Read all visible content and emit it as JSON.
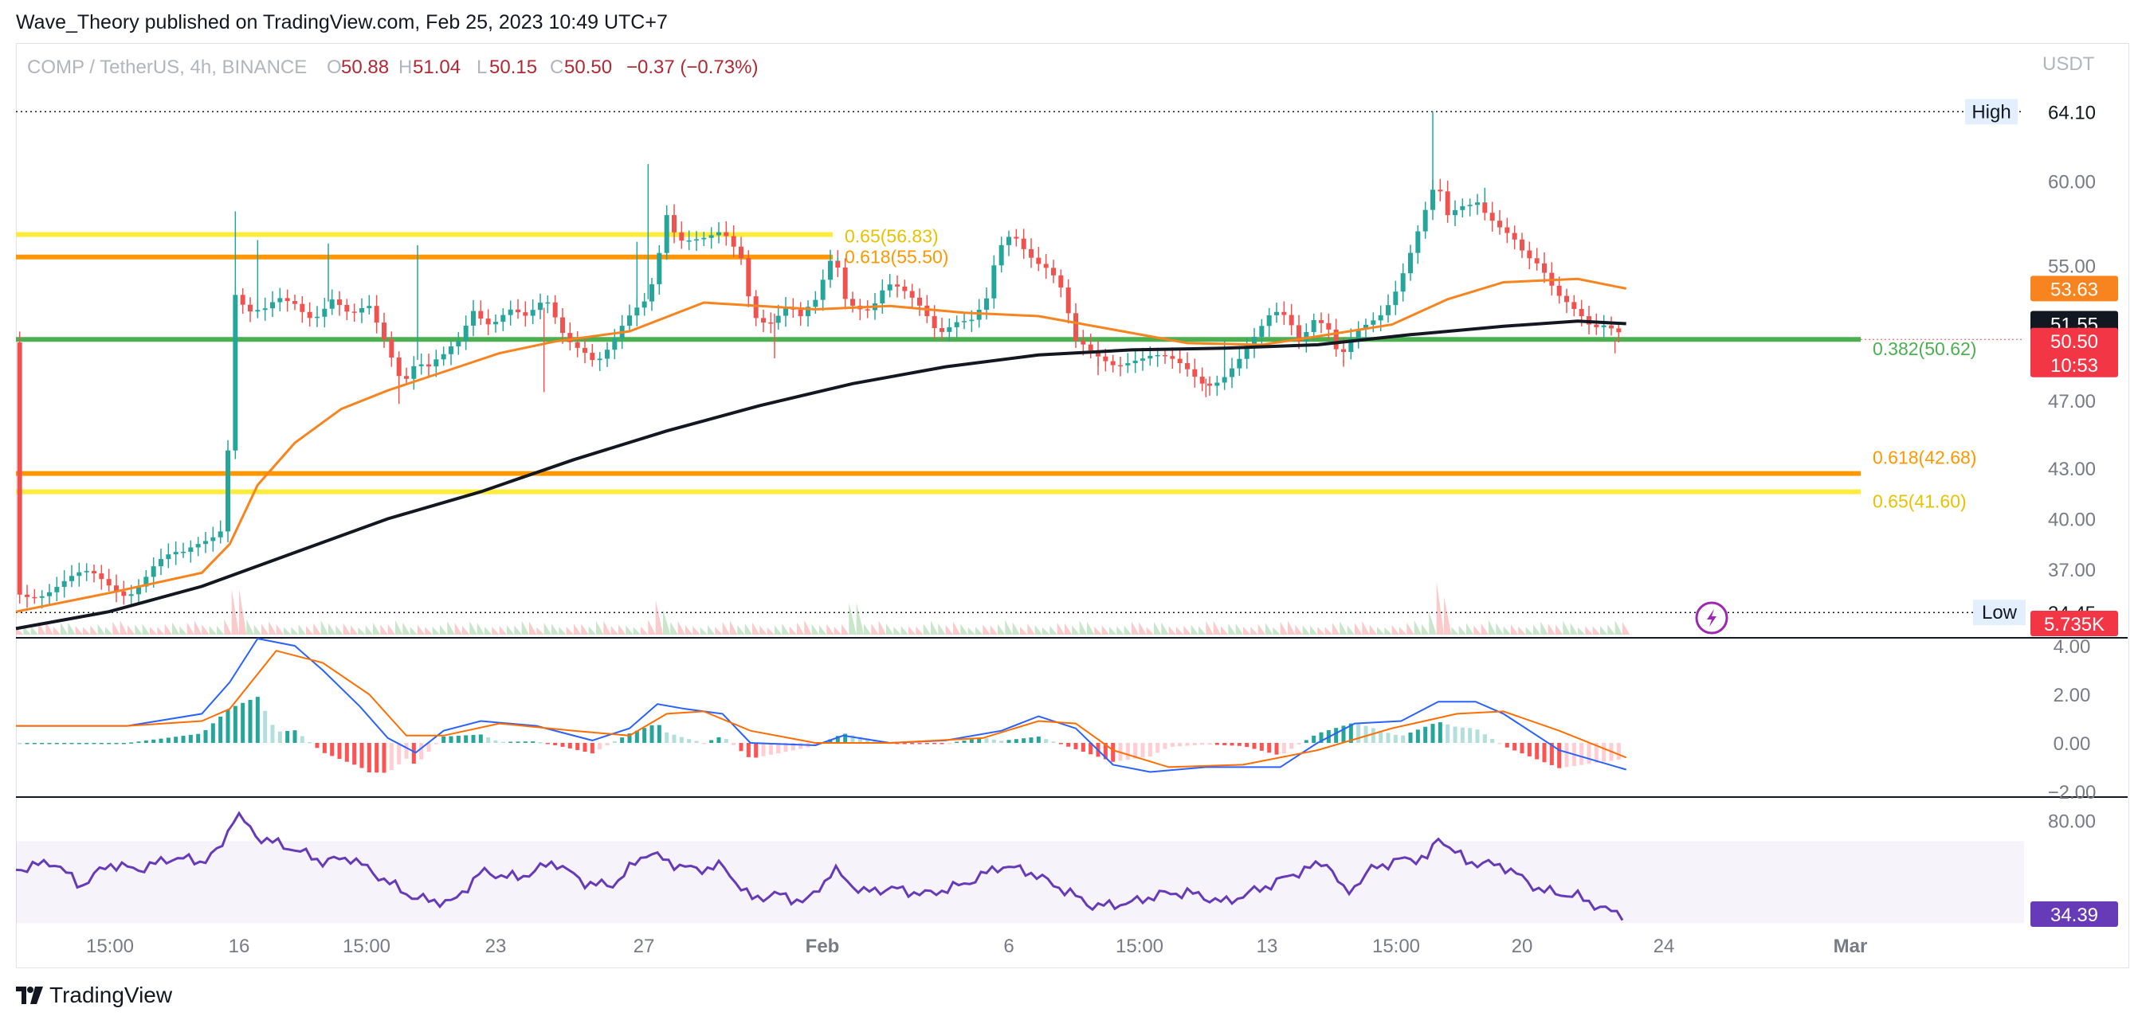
{
  "header": {
    "published": "Wave_Theory published on TradingView.com, Feb 25, 2023 10:49 UTC+7"
  },
  "symbol_bar": {
    "symbol": "COMP / TetherUS, 4h, BINANCE",
    "o_label": "O",
    "o": "50.88",
    "h_label": "H",
    "h": "51.04",
    "l_label": "L",
    "l": "50.15",
    "c_label": "C",
    "c": "50.50",
    "change": "−0.37 (−0.73%)"
  },
  "currency": "USDT",
  "brand": "TradingView",
  "colors": {
    "up": "#26a69a",
    "down": "#ef5350",
    "ema50": "#f7841e",
    "ema200": "#131722",
    "fib_yellow": "#ffeb3b",
    "fib_orange": "#ff9800",
    "fib_green": "#4caf50",
    "macd": "#2962ff",
    "signal": "#ff6d00",
    "rsi": "#673ab7"
  },
  "chart_data": [
    {
      "type": "candlestick",
      "pane": "price",
      "ylim": [
        33,
        66
      ],
      "y_ticks": [
        "60.00",
        "55.00",
        "47.00",
        "43.00",
        "40.00",
        "37.00"
      ],
      "x_ticks": [
        "15:00",
        "16",
        "15:00",
        "23",
        "27",
        "Feb",
        "6",
        "15:00",
        "13",
        "15:00",
        "20",
        "24",
        "Mar"
      ],
      "high": {
        "label": "High",
        "value": "64.10"
      },
      "low": {
        "label": "Low",
        "value": "34.45"
      },
      "price_badges": {
        "ema50": "53.63",
        "ema200": "51.55",
        "last": "50.50",
        "countdown": "10:53"
      },
      "fib_levels": [
        {
          "label": "0.65(56.83)",
          "value": 56.83,
          "color": "#ffeb3b"
        },
        {
          "label": "0.618(55.50)",
          "value": 55.5,
          "color": "#ff9800"
        },
        {
          "label": "0.382(50.62)",
          "value": 50.62,
          "color": "#4caf50"
        },
        {
          "label": "0.618(42.68)",
          "value": 42.68,
          "color": "#ff9800"
        },
        {
          "label": "0.65(41.60)",
          "value": 41.6,
          "color": "#ffeb3b"
        }
      ],
      "close_path": [
        [
          0,
          35.6
        ],
        [
          20,
          36.1
        ],
        [
          40,
          36.4
        ],
        [
          60,
          35.9
        ],
        [
          75,
          37.2
        ],
        [
          90,
          37.6
        ],
        [
          100,
          38.8
        ],
        [
          110,
          39.8
        ],
        [
          114,
          44.5
        ],
        [
          118,
          53.5
        ],
        [
          125,
          52.0
        ],
        [
          133,
          51.8
        ],
        [
          142,
          52.8
        ],
        [
          150,
          53.0
        ],
        [
          160,
          52.3
        ],
        [
          170,
          53.0
        ],
        [
          180,
          51.5
        ],
        [
          190,
          52.3
        ],
        [
          200,
          50.5
        ],
        [
          208,
          48.5
        ],
        [
          215,
          49.5
        ],
        [
          222,
          48.8
        ],
        [
          230,
          49.2
        ],
        [
          238,
          50.2
        ],
        [
          246,
          52.5
        ],
        [
          255,
          52.0
        ],
        [
          265,
          52.6
        ],
        [
          275,
          51.5
        ],
        [
          285,
          52.6
        ],
        [
          295,
          51.0
        ],
        [
          305,
          50.5
        ],
        [
          312,
          49.5
        ],
        [
          320,
          50.0
        ],
        [
          330,
          51.5
        ],
        [
          340,
          53.0
        ],
        [
          345,
          55.5
        ],
        [
          350,
          58.5
        ],
        [
          356,
          57.0
        ],
        [
          365,
          56.5
        ],
        [
          372,
          56.2
        ],
        [
          380,
          56.5
        ],
        [
          390,
          55.5
        ],
        [
          396,
          52.5
        ],
        [
          405,
          52.0
        ],
        [
          415,
          52.5
        ],
        [
          422,
          51.5
        ],
        [
          430,
          52.5
        ],
        [
          440,
          56.0
        ],
        [
          446,
          53.5
        ],
        [
          452,
          53.0
        ],
        [
          460,
          52.5
        ],
        [
          468,
          53.5
        ],
        [
          478,
          53.0
        ],
        [
          488,
          52.5
        ],
        [
          496,
          51.5
        ],
        [
          505,
          52.0
        ],
        [
          515,
          51.5
        ],
        [
          522,
          52.5
        ],
        [
          528,
          55.5
        ],
        [
          536,
          57.0
        ],
        [
          546,
          56.0
        ],
        [
          556,
          55.0
        ],
        [
          562,
          53.5
        ],
        [
          570,
          50.0
        ],
        [
          580,
          49.5
        ],
        [
          590,
          49.5
        ],
        [
          600,
          49.8
        ],
        [
          610,
          49.5
        ],
        [
          620,
          49.0
        ],
        [
          630,
          48.7
        ],
        [
          640,
          48.3
        ],
        [
          650,
          48.8
        ],
        [
          660,
          49.5
        ],
        [
          668,
          50.5
        ],
        [
          676,
          52.0
        ],
        [
          684,
          52.2
        ],
        [
          690,
          51.0
        ],
        [
          698,
          52.2
        ],
        [
          705,
          51.5
        ],
        [
          712,
          49.0
        ],
        [
          720,
          50.5
        ],
        [
          728,
          51.5
        ],
        [
          735,
          52.5
        ],
        [
          742,
          54.0
        ],
        [
          748,
          55.5
        ],
        [
          756,
          57.5
        ],
        [
          764,
          59.5
        ],
        [
          770,
          57.5
        ],
        [
          778,
          58.5
        ],
        [
          786,
          59.2
        ],
        [
          795,
          58.0
        ],
        [
          805,
          56.5
        ],
        [
          812,
          55.0
        ],
        [
          820,
          54.5
        ],
        [
          828,
          53.5
        ],
        [
          836,
          53.2
        ],
        [
          842,
          52.5
        ],
        [
          848,
          51.5
        ],
        [
          855,
          51.2
        ],
        [
          860,
          50.6
        ],
        [
          866,
          50.3
        ]
      ],
      "ema50_path": [
        [
          0,
          34.5
        ],
        [
          50,
          35.6
        ],
        [
          100,
          36.8
        ],
        [
          115,
          38.5
        ],
        [
          130,
          42.0
        ],
        [
          150,
          44.5
        ],
        [
          175,
          46.5
        ],
        [
          200,
          47.6
        ],
        [
          230,
          48.7
        ],
        [
          260,
          49.8
        ],
        [
          290,
          50.5
        ],
        [
          330,
          51.1
        ],
        [
          370,
          52.8
        ],
        [
          400,
          52.6
        ],
        [
          430,
          52.4
        ],
        [
          470,
          52.6
        ],
        [
          510,
          52.2
        ],
        [
          550,
          52.0
        ],
        [
          590,
          51.2
        ],
        [
          630,
          50.4
        ],
        [
          670,
          50.3
        ],
        [
          700,
          50.8
        ],
        [
          740,
          51.5
        ],
        [
          770,
          53.0
        ],
        [
          800,
          54.0
        ],
        [
          840,
          54.2
        ],
        [
          866,
          53.63
        ]
      ],
      "ema200_path": [
        [
          0,
          33.5
        ],
        [
          50,
          34.5
        ],
        [
          100,
          36.0
        ],
        [
          150,
          38.0
        ],
        [
          200,
          40.0
        ],
        [
          250,
          41.6
        ],
        [
          300,
          43.5
        ],
        [
          350,
          45.2
        ],
        [
          400,
          46.7
        ],
        [
          450,
          48.0
        ],
        [
          500,
          49.0
        ],
        [
          550,
          49.7
        ],
        [
          600,
          50.0
        ],
        [
          650,
          50.1
        ],
        [
          700,
          50.3
        ],
        [
          750,
          50.9
        ],
        [
          800,
          51.4
        ],
        [
          840,
          51.7
        ],
        [
          866,
          51.55
        ]
      ],
      "wick_highs": [
        [
          118,
          58.2
        ],
        [
          130,
          56.5
        ],
        [
          168,
          56.3
        ],
        [
          216,
          56.2
        ],
        [
          334,
          56.4
        ],
        [
          340,
          61.0
        ],
        [
          442,
          55.5
        ],
        [
          650,
          50.6
        ],
        [
          762,
          64.1
        ],
        [
          790,
          59.6
        ]
      ],
      "wick_lows": [
        [
          206,
          46.8
        ],
        [
          284,
          47.5
        ],
        [
          408,
          49.5
        ],
        [
          582,
          48.5
        ],
        [
          640,
          47.2
        ],
        [
          714,
          49.0
        ],
        [
          860,
          49.8
        ]
      ]
    },
    {
      "type": "area",
      "pane": "volume",
      "label": "5.735K",
      "spikes": [
        [
          118,
          1.0
        ],
        [
          345,
          0.65
        ],
        [
          450,
          0.7
        ],
        [
          765,
          1.0
        ]
      ]
    },
    {
      "type": "line",
      "pane": "macd",
      "ylim": [
        -2.2,
        4.2
      ],
      "y_ticks": [
        "4.00",
        "2.00",
        "0.00",
        "−2.00"
      ],
      "macd_path": [
        [
          0,
          0.7
        ],
        [
          60,
          0.7
        ],
        [
          100,
          1.2
        ],
        [
          115,
          2.5
        ],
        [
          130,
          4.3
        ],
        [
          150,
          4.0
        ],
        [
          165,
          3.0
        ],
        [
          185,
          1.5
        ],
        [
          200,
          0.2
        ],
        [
          215,
          -0.4
        ],
        [
          230,
          0.5
        ],
        [
          250,
          0.9
        ],
        [
          280,
          0.7
        ],
        [
          310,
          0.1
        ],
        [
          330,
          0.6
        ],
        [
          345,
          1.6
        ],
        [
          360,
          1.4
        ],
        [
          380,
          1.2
        ],
        [
          395,
          0.0
        ],
        [
          430,
          -0.1
        ],
        [
          445,
          0.3
        ],
        [
          470,
          0.0
        ],
        [
          500,
          0.1
        ],
        [
          530,
          0.5
        ],
        [
          550,
          1.1
        ],
        [
          570,
          0.6
        ],
        [
          590,
          -0.9
        ],
        [
          610,
          -1.2
        ],
        [
          640,
          -1.0
        ],
        [
          680,
          -1.0
        ],
        [
          700,
          0.0
        ],
        [
          720,
          0.8
        ],
        [
          745,
          0.9
        ],
        [
          765,
          1.7
        ],
        [
          785,
          1.7
        ],
        [
          800,
          1.2
        ],
        [
          830,
          -0.3
        ],
        [
          866,
          -1.1
        ]
      ],
      "signal_path": [
        [
          0,
          0.7
        ],
        [
          60,
          0.7
        ],
        [
          100,
          0.9
        ],
        [
          115,
          1.4
        ],
        [
          140,
          3.8
        ],
        [
          165,
          3.3
        ],
        [
          190,
          2.0
        ],
        [
          210,
          0.3
        ],
        [
          230,
          0.3
        ],
        [
          260,
          0.8
        ],
        [
          300,
          0.5
        ],
        [
          330,
          0.3
        ],
        [
          350,
          1.2
        ],
        [
          370,
          1.3
        ],
        [
          395,
          0.5
        ],
        [
          430,
          0.0
        ],
        [
          470,
          0.0
        ],
        [
          520,
          0.2
        ],
        [
          550,
          0.9
        ],
        [
          570,
          0.8
        ],
        [
          590,
          -0.3
        ],
        [
          620,
          -1.0
        ],
        [
          660,
          -0.9
        ],
        [
          700,
          -0.3
        ],
        [
          740,
          0.6
        ],
        [
          775,
          1.2
        ],
        [
          800,
          1.3
        ],
        [
          830,
          0.5
        ],
        [
          866,
          -0.6
        ]
      ]
    },
    {
      "type": "line",
      "pane": "rsi",
      "ylim": [
        20,
        90
      ],
      "y_ticks": [
        "80.00"
      ],
      "band": [
        30,
        70
      ],
      "value_badge": "34.39",
      "rsi_path": [
        [
          0,
          56
        ],
        [
          20,
          60
        ],
        [
          35,
          48
        ],
        [
          50,
          59
        ],
        [
          65,
          56
        ],
        [
          85,
          62
        ],
        [
          100,
          60
        ],
        [
          110,
          66
        ],
        [
          118,
          84
        ],
        [
          130,
          72
        ],
        [
          150,
          66
        ],
        [
          165,
          60
        ],
        [
          180,
          62
        ],
        [
          200,
          50
        ],
        [
          215,
          42
        ],
        [
          235,
          40
        ],
        [
          250,
          55
        ],
        [
          270,
          52
        ],
        [
          290,
          60
        ],
        [
          305,
          50
        ],
        [
          320,
          48
        ],
        [
          340,
          65
        ],
        [
          350,
          60
        ],
        [
          365,
          56
        ],
        [
          380,
          58
        ],
        [
          395,
          42
        ],
        [
          410,
          44
        ],
        [
          425,
          40
        ],
        [
          440,
          56
        ],
        [
          455,
          45
        ],
        [
          470,
          47
        ],
        [
          490,
          44
        ],
        [
          510,
          49
        ],
        [
          530,
          58
        ],
        [
          545,
          55
        ],
        [
          560,
          48
        ],
        [
          580,
          38
        ],
        [
          600,
          40
        ],
        [
          615,
          44
        ],
        [
          630,
          45
        ],
        [
          650,
          40
        ],
        [
          670,
          47
        ],
        [
          690,
          55
        ],
        [
          705,
          60
        ],
        [
          715,
          44
        ],
        [
          730,
          57
        ],
        [
          745,
          61
        ],
        [
          760,
          62
        ],
        [
          765,
          72
        ],
        [
          780,
          60
        ],
        [
          800,
          58
        ],
        [
          820,
          46
        ],
        [
          840,
          43
        ],
        [
          856,
          36
        ],
        [
          866,
          34
        ]
      ]
    }
  ]
}
